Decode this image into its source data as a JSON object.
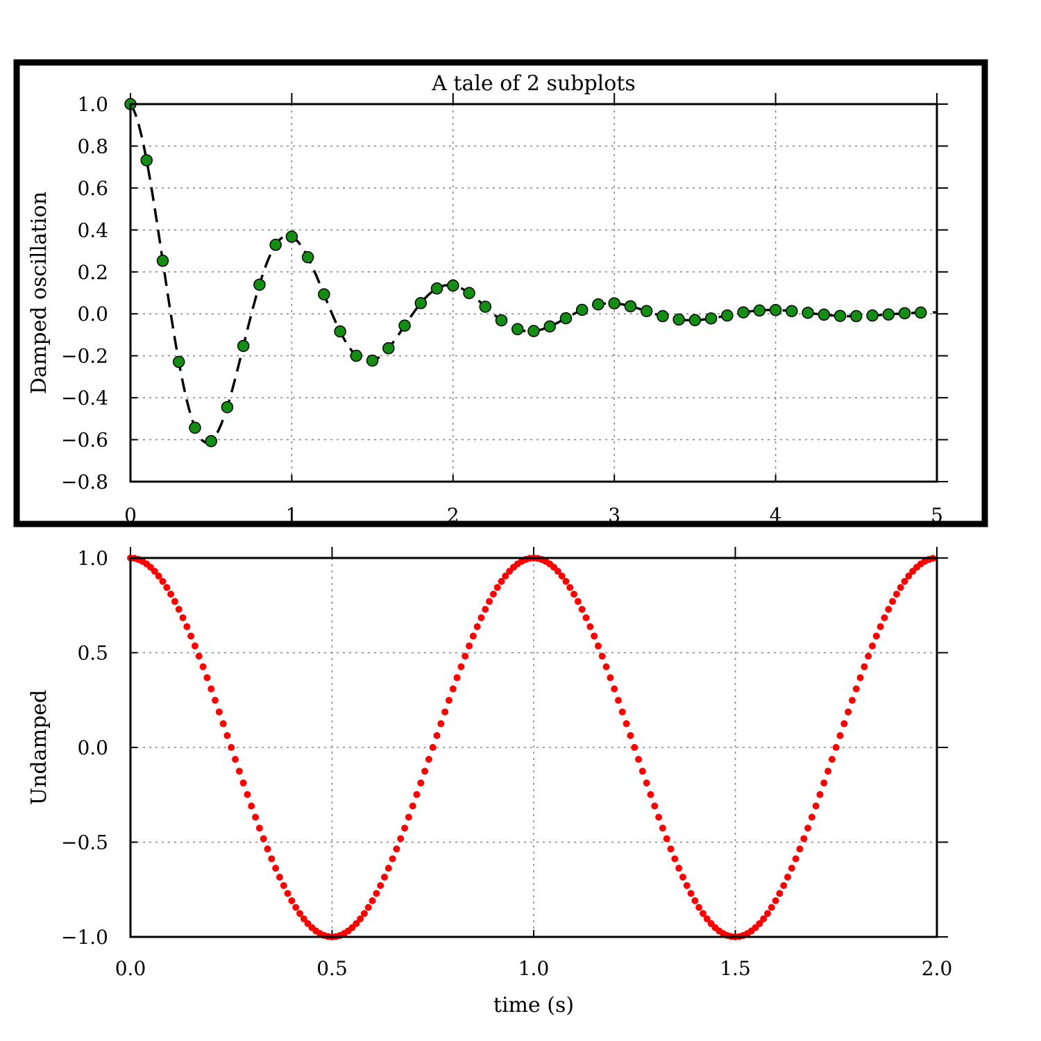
{
  "chart_data": [
    {
      "type": "line",
      "title": "A tale of 2 subplots",
      "xlabel": "",
      "ylabel": "Damped oscillation",
      "xlim": [
        0,
        5
      ],
      "ylim": [
        -0.8,
        1.0
      ],
      "xticks": [
        "0",
        "1",
        "2",
        "3",
        "4",
        "5"
      ],
      "yticks": [
        "1.0",
        "0.8",
        "0.6",
        "0.4",
        "0.2",
        "0.0",
        "−0.2",
        "−0.4",
        "−0.6",
        "−0.8"
      ],
      "grid": true,
      "line_style": "dashed",
      "line_color": "#000000",
      "marker_color": "#138d13",
      "function": "cos(2*pi*t) * exp(-t)",
      "series": [
        {
          "x": [
            0.0,
            0.1,
            0.2,
            0.3,
            0.4,
            0.5,
            0.6,
            0.7,
            0.8,
            0.9,
            1.0,
            1.1,
            1.2,
            1.3,
            1.4,
            1.5,
            1.6,
            1.7,
            1.8,
            1.9,
            2.0,
            2.1,
            2.2,
            2.3,
            2.4,
            2.5,
            2.6,
            2.7,
            2.8,
            2.9,
            3.0,
            3.1,
            3.2,
            3.3,
            3.4,
            3.5,
            3.6,
            3.7,
            3.8,
            3.9,
            4.0,
            4.1,
            4.2,
            4.3,
            4.4,
            4.5,
            4.6,
            4.7,
            4.8,
            4.9
          ],
          "values": [
            1.0,
            0.732,
            0.253,
            -0.229,
            -0.543,
            -0.607,
            -0.445,
            -0.153,
            0.139,
            0.329,
            0.368,
            0.27,
            0.093,
            -0.084,
            -0.2,
            -0.223,
            -0.164,
            -0.056,
            0.051,
            0.121,
            0.135,
            0.099,
            0.034,
            -0.031,
            -0.073,
            -0.082,
            -0.06,
            -0.021,
            0.019,
            0.045,
            0.05,
            0.036,
            0.013,
            -0.011,
            -0.027,
            -0.03,
            -0.022,
            -0.008,
            0.007,
            0.016,
            0.018,
            0.013,
            0.005,
            -0.004,
            -0.01,
            -0.011,
            -0.008,
            -0.003,
            0.003,
            0.006
          ]
        }
      ]
    },
    {
      "type": "scatter",
      "title": "",
      "xlabel": "time (s)",
      "ylabel": "Undamped",
      "xlim": [
        0.0,
        2.0
      ],
      "ylim": [
        -1.0,
        1.0
      ],
      "xticks": [
        "0.0",
        "0.5",
        "1.0",
        "1.5",
        "2.0"
      ],
      "yticks": [
        "1.0",
        "0.5",
        "0.0",
        "−0.5",
        "−1.0"
      ],
      "grid": true,
      "marker_color": "#ff0000",
      "function": "cos(2*pi*t)",
      "x_start": 0.0,
      "x_step": 0.01,
      "point_count": 200
    }
  ]
}
